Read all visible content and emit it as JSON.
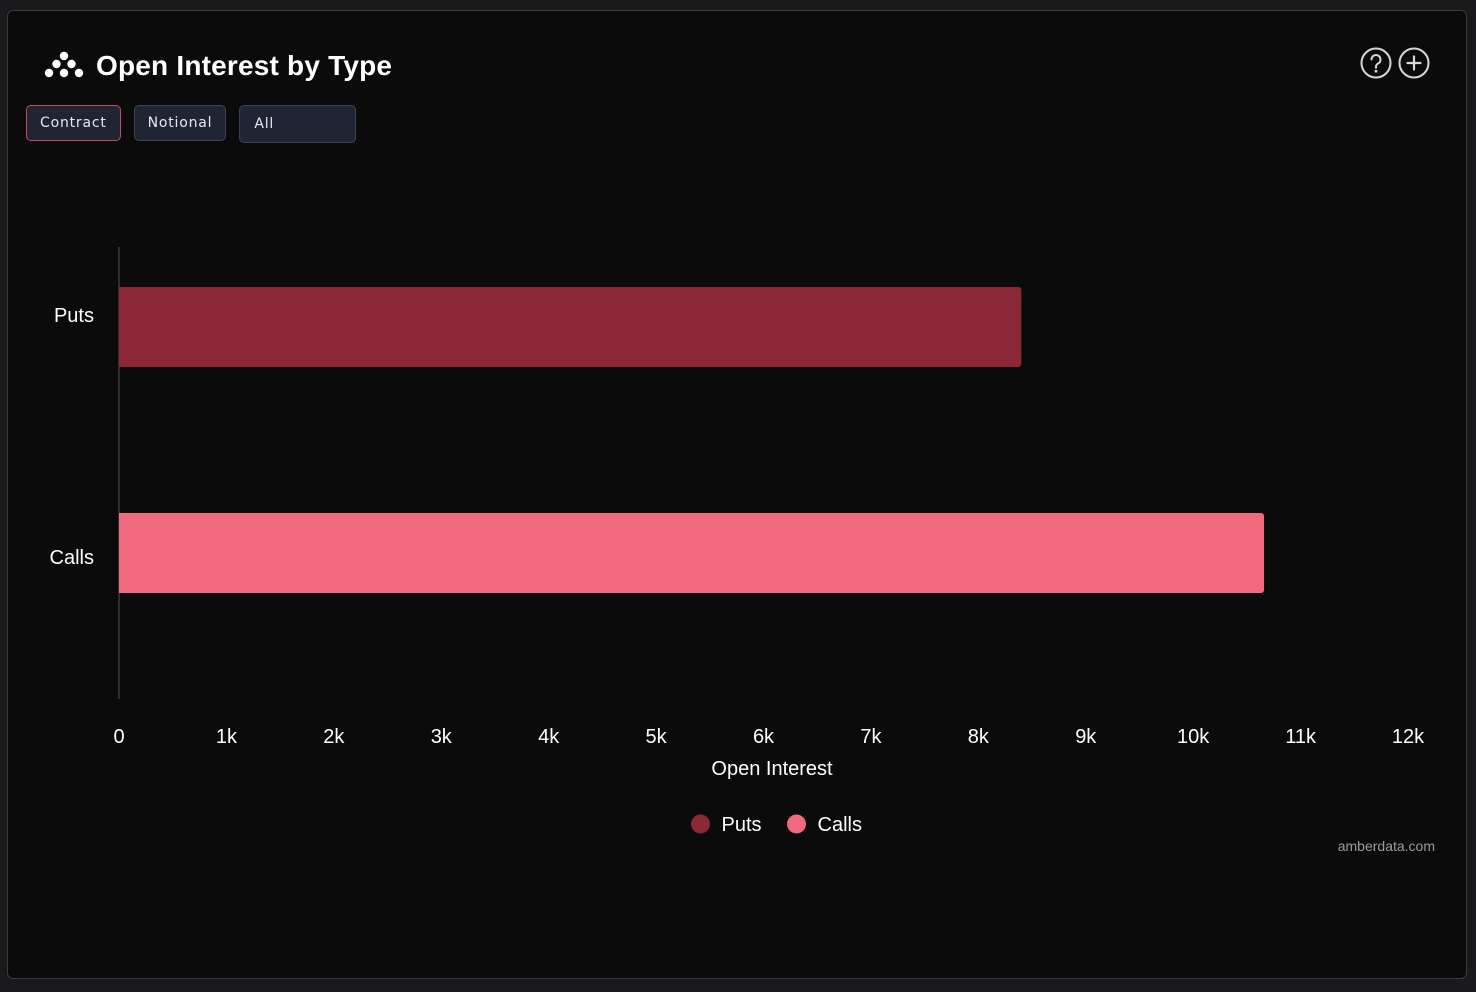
{
  "header": {
    "title": "Open Interest by Type",
    "logo_icon": "amberdata-logo-icon"
  },
  "toolbar": {
    "contract_label": "Contract",
    "notional_label": "Notional",
    "filter_value": "All",
    "help_icon": "help-circle-icon",
    "add_icon": "plus-circle-icon"
  },
  "chart_data": {
    "type": "bar",
    "orientation": "horizontal",
    "categories": [
      "Puts",
      "Calls"
    ],
    "series": [
      {
        "name": "Puts",
        "color": "#8b2737",
        "values": [
          8400,
          null
        ]
      },
      {
        "name": "Calls",
        "color": "#f0697d",
        "values": [
          null,
          10660
        ]
      }
    ],
    "xlabel": "Open Interest",
    "ylabel": "",
    "xlim": [
      0,
      12000
    ],
    "x_ticks": [
      0,
      1000,
      2000,
      3000,
      4000,
      5000,
      6000,
      7000,
      8000,
      9000,
      10000,
      11000,
      12000
    ],
    "x_tick_labels": [
      "0",
      "1k",
      "2k",
      "3k",
      "4k",
      "5k",
      "6k",
      "7k",
      "8k",
      "9k",
      "10k",
      "11k",
      "12k"
    ],
    "grid": false,
    "legend": "bottom-center"
  },
  "footer": {
    "source": "amberdata.com"
  },
  "colors": {
    "background": "#0b0b0c",
    "puts": "#8b2737",
    "calls": "#f0697d",
    "text": "#ffffff",
    "active_border": "#c9485c"
  }
}
